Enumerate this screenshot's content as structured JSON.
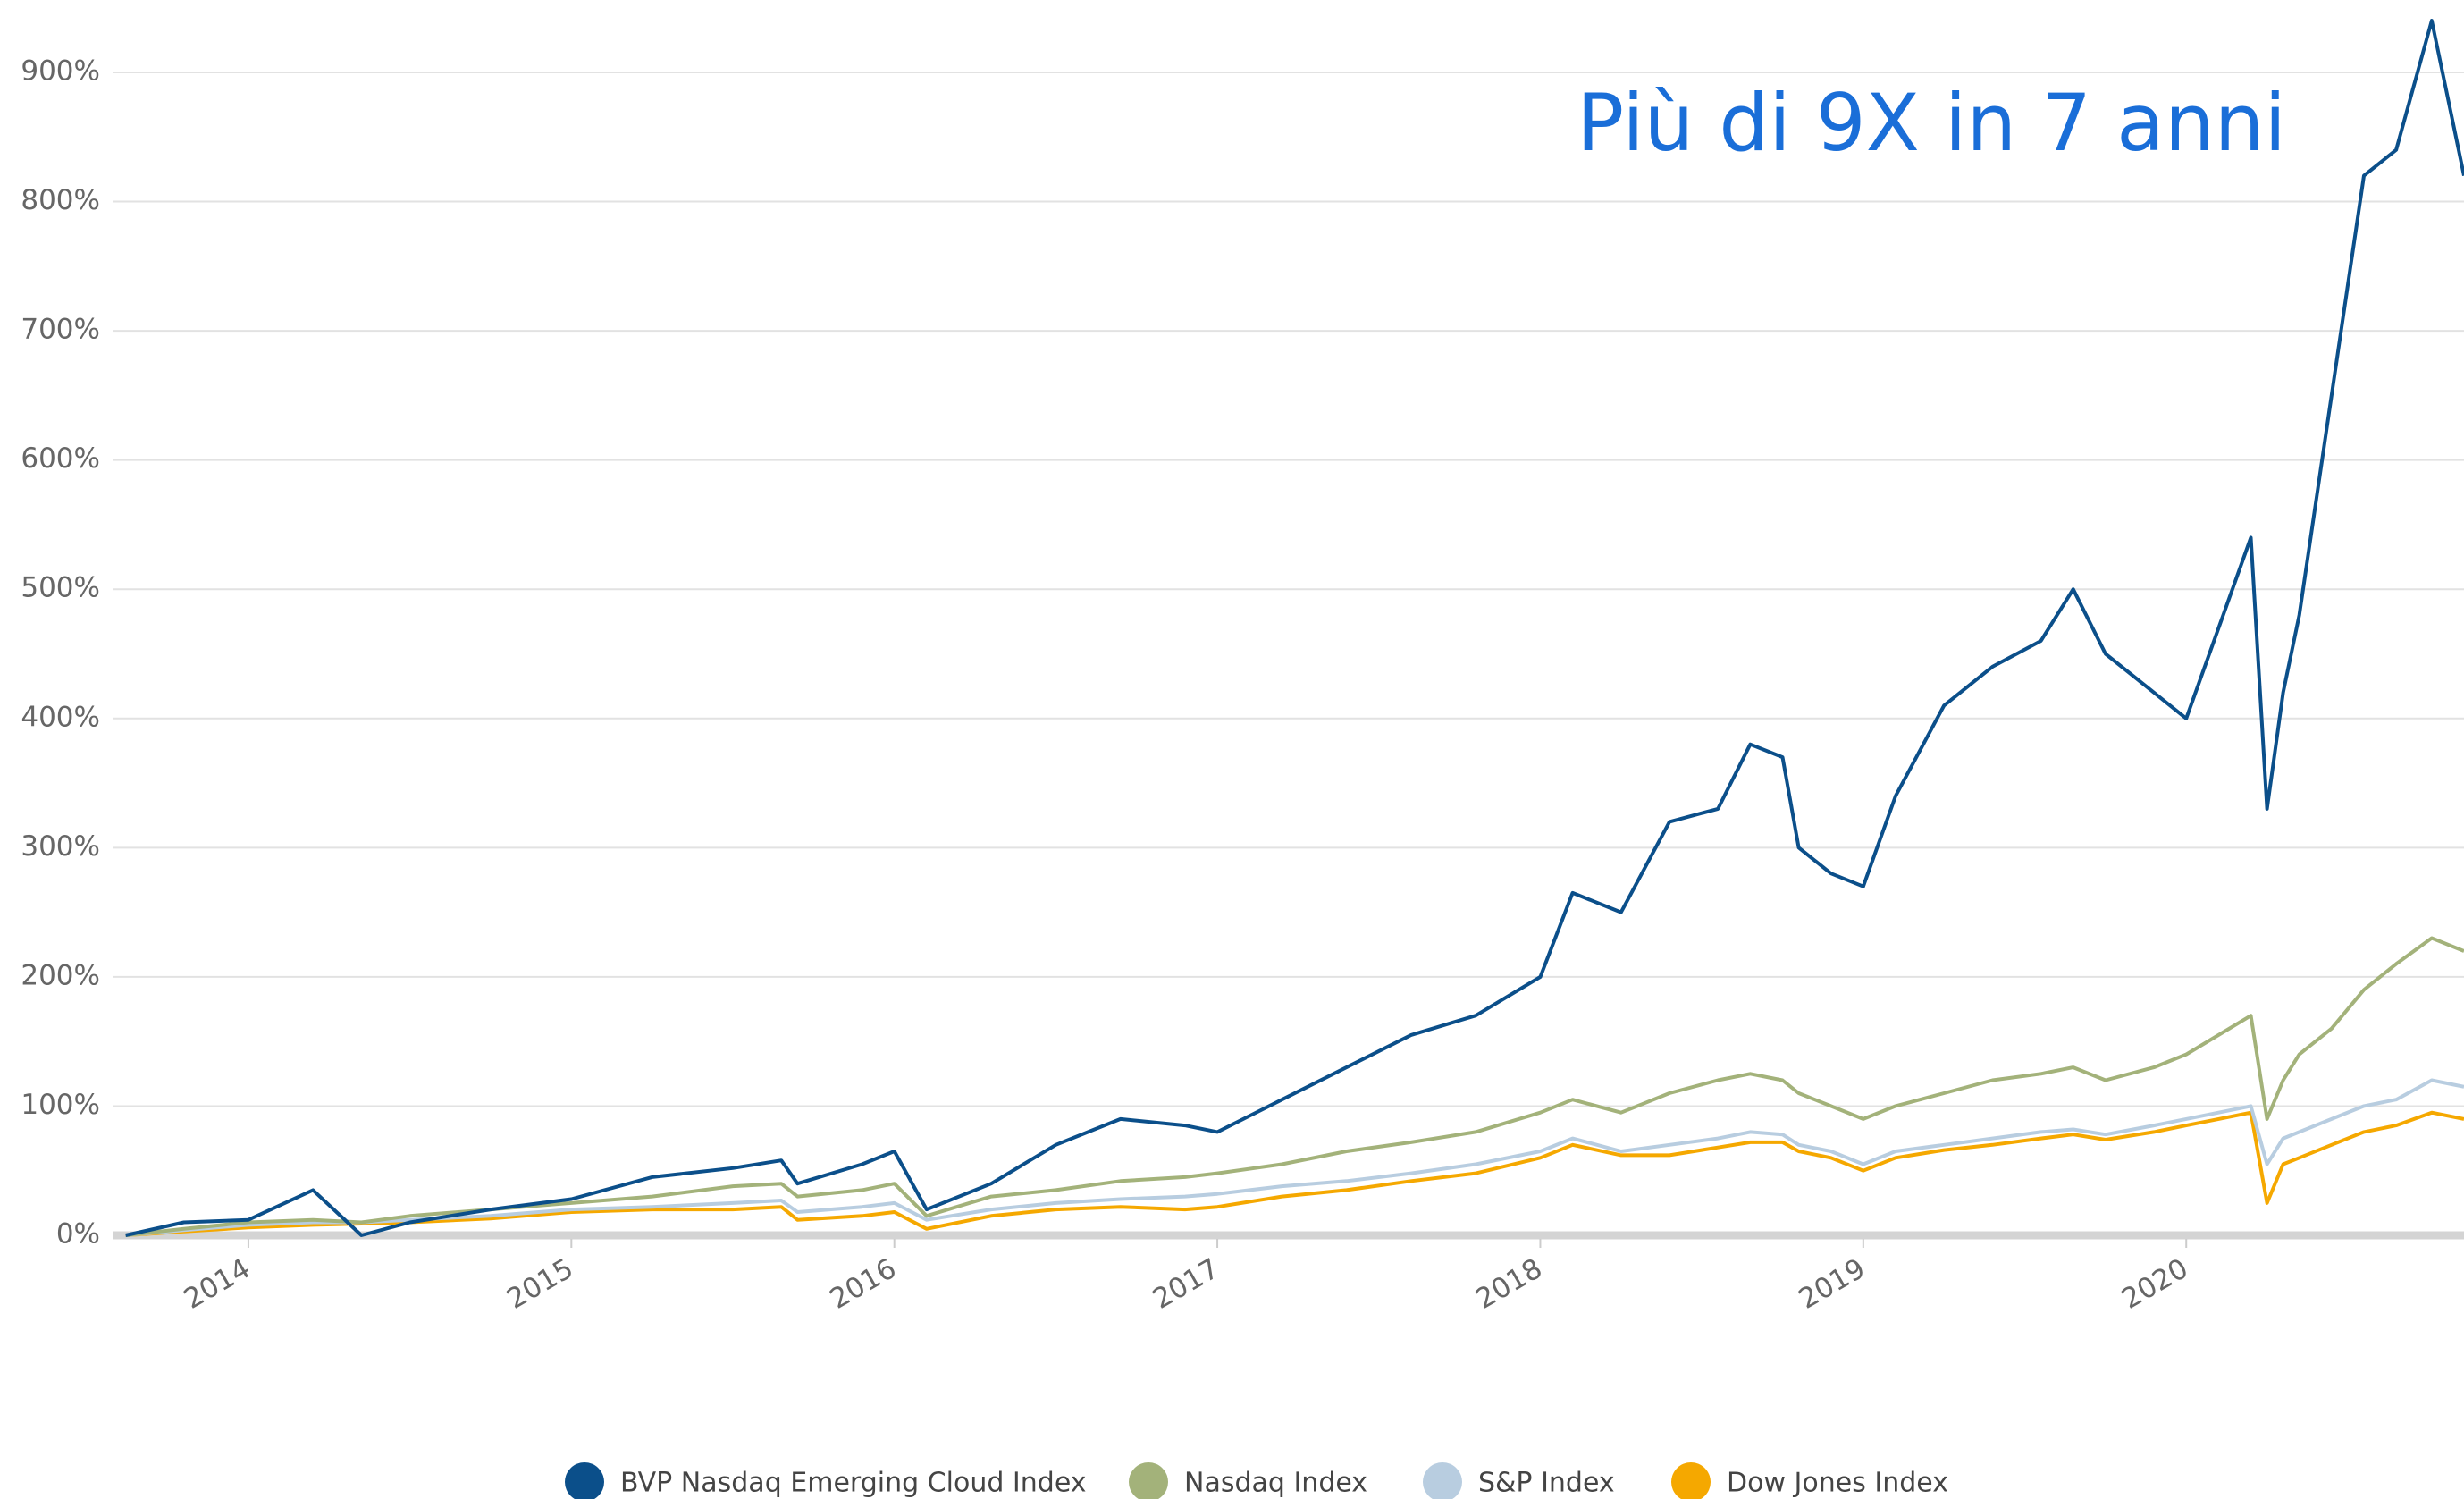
{
  "chart_data": {
    "type": "line",
    "annotation": "Più di 9X in 7 anni",
    "x": [
      2013.62,
      2013.8,
      2014.0,
      2014.2,
      2014.35,
      2014.5,
      2014.75,
      2015.0,
      2015.25,
      2015.5,
      2015.65,
      2015.7,
      2015.9,
      2016.0,
      2016.1,
      2016.3,
      2016.5,
      2016.7,
      2016.9,
      2017.0,
      2017.2,
      2017.4,
      2017.6,
      2017.8,
      2018.0,
      2018.1,
      2018.25,
      2018.4,
      2018.55,
      2018.65,
      2018.75,
      2018.8,
      2018.9,
      2019.0,
      2019.1,
      2019.25,
      2019.4,
      2019.55,
      2019.65,
      2019.75,
      2019.9,
      2020.0,
      2020.1,
      2020.2,
      2020.25,
      2020.3,
      2020.35,
      2020.45,
      2020.55,
      2020.65,
      2020.76,
      2020.86
    ],
    "series": [
      {
        "name": "BVP Nasdaq Emerging Cloud Index",
        "color": "#0b4f8a",
        "values": [
          0,
          10,
          12,
          35,
          0,
          10,
          20,
          28,
          45,
          52,
          58,
          40,
          55,
          65,
          20,
          40,
          70,
          90,
          85,
          80,
          105,
          130,
          155,
          170,
          200,
          265,
          250,
          320,
          330,
          380,
          370,
          300,
          280,
          270,
          340,
          410,
          440,
          460,
          500,
          450,
          420,
          400,
          470,
          540,
          330,
          420,
          480,
          650,
          820,
          840,
          940,
          820
        ]
      },
      {
        "name": "Nasdaq Index",
        "color": "#a3b27a",
        "values": [
          0,
          5,
          10,
          12,
          10,
          15,
          20,
          25,
          30,
          38,
          40,
          30,
          35,
          40,
          15,
          30,
          35,
          42,
          45,
          48,
          55,
          65,
          72,
          80,
          95,
          105,
          95,
          110,
          120,
          125,
          120,
          110,
          100,
          90,
          100,
          110,
          120,
          125,
          130,
          120,
          130,
          140,
          155,
          170,
          90,
          120,
          140,
          160,
          190,
          210,
          230,
          220
        ]
      },
      {
        "name": "S&P Index",
        "color": "#b8cde0",
        "values": [
          0,
          4,
          8,
          10,
          10,
          12,
          15,
          20,
          22,
          25,
          27,
          18,
          22,
          25,
          12,
          20,
          25,
          28,
          30,
          32,
          38,
          42,
          48,
          55,
          65,
          75,
          65,
          70,
          75,
          80,
          78,
          70,
          65,
          55,
          65,
          70,
          75,
          80,
          82,
          78,
          85,
          90,
          95,
          100,
          55,
          75,
          80,
          90,
          100,
          105,
          120,
          115
        ]
      },
      {
        "name": "Dow Jones Index",
        "color": "#f5a800",
        "values": [
          0,
          3,
          6,
          8,
          9,
          10,
          13,
          18,
          20,
          20,
          22,
          12,
          15,
          18,
          5,
          15,
          20,
          22,
          20,
          22,
          30,
          35,
          42,
          48,
          60,
          70,
          62,
          62,
          68,
          72,
          72,
          65,
          60,
          50,
          60,
          66,
          70,
          75,
          78,
          74,
          80,
          85,
          90,
          95,
          25,
          55,
          60,
          70,
          80,
          85,
          95,
          90
        ]
      }
    ],
    "xlim": [
      2013.61,
      2020.86
    ],
    "xticks": [
      2014,
      2015,
      2016,
      2017,
      2018,
      2019,
      2020
    ],
    "ylim": [
      0,
      956
    ],
    "yticks": [
      {
        "value": 0,
        "label": "0%"
      },
      {
        "value": 100,
        "label": "100%"
      },
      {
        "value": 200,
        "label": "200%"
      },
      {
        "value": 300,
        "label": "300%"
      },
      {
        "value": 400,
        "label": "400%"
      },
      {
        "value": 500,
        "label": "500%"
      },
      {
        "value": 600,
        "label": "600%"
      },
      {
        "value": 700,
        "label": "700%"
      },
      {
        "value": 800,
        "label": "800%"
      },
      {
        "value": 900,
        "label": "900%"
      }
    ],
    "grid": true
  }
}
